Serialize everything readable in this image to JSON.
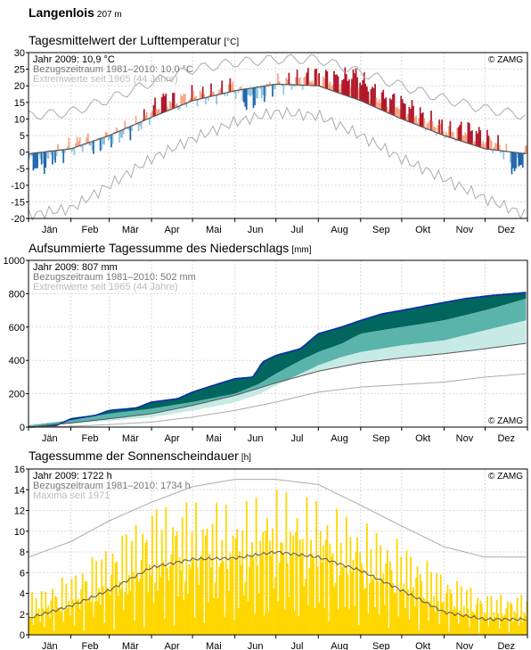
{
  "station": {
    "name": "Langenlois",
    "elevation": "207 m"
  },
  "months": [
    "Jän",
    "Feb",
    "Mär",
    "Apr",
    "Mai",
    "Jun",
    "Jul",
    "Aug",
    "Sep",
    "Okt",
    "Nov",
    "Dez"
  ],
  "copyright": "© ZAMG",
  "colors": {
    "warm_light": "#f4a582",
    "warm_dark": "#b2182b",
    "cold_light": "#92c5de",
    "cold_dark": "#2166ac",
    "climate_line": "#555555",
    "extreme_line": "#aaaaaa",
    "precip_fill_dark": "#01665e",
    "precip_fill_mid": "#5ab4ac",
    "precip_fill_light": "#c7eae5",
    "precip_year_line": "#0c2ca8",
    "sun_bar": "#ffd700"
  },
  "chart_data": [
    {
      "type": "area",
      "title": "Tagesmittelwert der Lufttemperatur",
      "unit": "[°C]",
      "legend": [
        "Jahr 2009: 10,9 °C",
        "Bezugszeitraum 1981–2010: 10,0 °C",
        "Extremwerte seit 1965 (44 Jahre)"
      ],
      "ylim": [
        -20,
        30
      ],
      "yticks": [
        -20,
        -15,
        -10,
        -5,
        0,
        5,
        10,
        15,
        20,
        25,
        30
      ],
      "x_unit": "day of year",
      "climate_mean": {
        "x": [
          1,
          32,
          60,
          91,
          121,
          152,
          182,
          213,
          244,
          274,
          305,
          335,
          365
        ],
        "y": [
          -0.5,
          1.0,
          5.0,
          10.5,
          15.5,
          18.5,
          20.5,
          20.0,
          15.5,
          10.0,
          5.0,
          1.0,
          -0.5
        ]
      },
      "extreme_max": {
        "x": [
          1,
          32,
          60,
          91,
          121,
          152,
          182,
          213,
          244,
          274,
          305,
          335,
          365
        ],
        "y": [
          11,
          12,
          16,
          21,
          25,
          27,
          28,
          28,
          24,
          20,
          16,
          13,
          11
        ]
      },
      "extreme_min": {
        "x": [
          1,
          32,
          60,
          91,
          121,
          152,
          182,
          213,
          244,
          274,
          305,
          335,
          365
        ],
        "y": [
          -19,
          -17,
          -10,
          -2,
          4,
          9,
          12,
          11,
          5,
          -2,
          -8,
          -14,
          -19
        ]
      },
      "year_2009": {
        "x": [
          1,
          10,
          20,
          30,
          40,
          50,
          60,
          70,
          80,
          90,
          100,
          110,
          120,
          130,
          140,
          150,
          160,
          170,
          180,
          190,
          200,
          210,
          220,
          230,
          240,
          250,
          260,
          270,
          280,
          290,
          300,
          310,
          320,
          330,
          340,
          350,
          357,
          365
        ],
        "y": [
          -3,
          -4,
          -1,
          1,
          3,
          2,
          4,
          6,
          8,
          12,
          16,
          15,
          17,
          17,
          18,
          20,
          15,
          17,
          20,
          21,
          22,
          23,
          22,
          22,
          23,
          19,
          16,
          15,
          13,
          10,
          8,
          6,
          7,
          5,
          3,
          0,
          -6,
          1
        ]
      }
    },
    {
      "type": "area",
      "title": "Aufsummierte Tagessumme des Niederschlags",
      "unit": "[mm]",
      "legend": [
        "Jahr 2009: 807 mm",
        "Bezugszeitraum 1981–2010: 502 mm",
        "Extremwerte seit 1965 (44 Jahre)"
      ],
      "ylim": [
        0,
        1000
      ],
      "yticks": [
        0,
        200,
        400,
        600,
        800,
        1000
      ],
      "x_unit": "day of year",
      "climate_mean": {
        "x": [
          1,
          32,
          60,
          91,
          121,
          152,
          182,
          213,
          244,
          274,
          305,
          335,
          365
        ],
        "y": [
          0,
          25,
          50,
          80,
          130,
          190,
          265,
          335,
          385,
          415,
          440,
          470,
          502
        ]
      },
      "extreme_min": {
        "x": [
          1,
          32,
          60,
          91,
          121,
          152,
          182,
          213,
          244,
          274,
          305,
          335,
          365
        ],
        "y": [
          0,
          5,
          15,
          30,
          60,
          100,
          150,
          210,
          240,
          255,
          270,
          300,
          320
        ]
      },
      "year_2009": {
        "x": [
          1,
          20,
          32,
          50,
          60,
          80,
          91,
          110,
          121,
          140,
          152,
          165,
          170,
          172,
          182,
          200,
          213,
          230,
          244,
          260,
          274,
          300,
          320,
          340,
          365
        ],
        "y": [
          0,
          5,
          50,
          70,
          100,
          115,
          150,
          170,
          210,
          260,
          290,
          300,
          360,
          390,
          430,
          470,
          560,
          600,
          640,
          680,
          700,
          740,
          770,
          790,
          807
        ]
      },
      "band_upper": {
        "x": [
          1,
          32,
          60,
          91,
          121,
          152,
          170,
          182,
          200,
          213,
          230,
          244,
          274,
          305,
          335,
          365
        ],
        "y": [
          10,
          40,
          80,
          110,
          150,
          200,
          260,
          320,
          400,
          450,
          500,
          560,
          600,
          640,
          700,
          770
        ]
      },
      "band_lower": {
        "x": [
          1,
          32,
          60,
          91,
          121,
          152,
          170,
          182,
          200,
          213,
          230,
          244,
          274,
          305,
          335,
          365
        ],
        "y": [
          5,
          20,
          40,
          60,
          100,
          150,
          200,
          250,
          320,
          370,
          420,
          450,
          490,
          520,
          580,
          640
        ]
      }
    },
    {
      "type": "bar",
      "title": "Tagessumme der Sonnenscheindauer",
      "unit": "[h]",
      "legend": [
        "Jahr 2009: 1722 h",
        "Bezugszeitraum 1981–2010: 1734 h",
        "Maxima seit 1971"
      ],
      "ylim": [
        0,
        16
      ],
      "yticks": [
        0,
        2,
        4,
        6,
        8,
        10,
        12,
        14,
        16
      ],
      "x_unit": "day of year",
      "maxima": {
        "x": [
          1,
          32,
          60,
          91,
          121,
          152,
          182,
          213,
          244,
          274,
          305,
          335,
          365
        ],
        "y": [
          7.5,
          9,
          11,
          12.8,
          14.3,
          15,
          15,
          14.5,
          12.5,
          10.5,
          8.5,
          7.5,
          7.5
        ]
      },
      "climate_mean": {
        "x": [
          1,
          32,
          60,
          91,
          121,
          152,
          182,
          213,
          244,
          274,
          305,
          335,
          365
        ],
        "y": [
          1.6,
          2.8,
          4.3,
          6.5,
          7.3,
          7.4,
          8.0,
          7.5,
          6.2,
          4.3,
          2.2,
          1.5,
          1.5
        ]
      },
      "year_2009_envelope": {
        "x": [
          1,
          32,
          60,
          91,
          121,
          152,
          182,
          213,
          244,
          274,
          305,
          335,
          365
        ],
        "y": [
          4,
          6,
          9,
          12.5,
          13,
          12.5,
          14,
          13,
          11,
          9,
          6,
          4,
          4
        ]
      }
    }
  ]
}
